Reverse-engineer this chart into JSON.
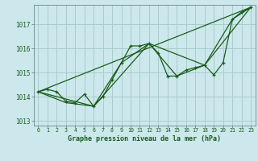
{
  "background_color": "#cce8ec",
  "grid_color": "#aacccc",
  "line_color": "#1a5c1a",
  "xlabel": "Graphe pression niveau de la mer (hPa)",
  "ylim": [
    1012.8,
    1017.8
  ],
  "xlim": [
    -0.5,
    23.5
  ],
  "yticks": [
    1013,
    1014,
    1015,
    1016,
    1017
  ],
  "xticks": [
    0,
    1,
    2,
    3,
    4,
    5,
    6,
    7,
    8,
    9,
    10,
    11,
    12,
    13,
    14,
    15,
    16,
    17,
    18,
    19,
    20,
    21,
    22,
    23
  ],
  "series": [
    {
      "x": [
        0,
        1,
        2,
        3,
        4,
        5,
        6,
        7,
        8,
        9,
        10,
        11,
        12,
        13,
        14,
        15,
        16,
        17,
        18,
        19,
        20,
        21,
        22,
        23
      ],
      "y": [
        1014.2,
        1014.3,
        1014.2,
        1013.8,
        1013.75,
        1014.1,
        1013.6,
        1014.0,
        1014.7,
        1015.4,
        1016.1,
        1016.1,
        1016.2,
        1015.8,
        1014.85,
        1014.85,
        1015.1,
        1015.2,
        1015.3,
        1014.9,
        1015.4,
        1017.2,
        1017.5,
        1017.7
      ],
      "with_marker": true
    },
    {
      "x": [
        0,
        3,
        6,
        9,
        12,
        15,
        18,
        21,
        23
      ],
      "y": [
        1014.2,
        1013.75,
        1013.6,
        1015.4,
        1016.2,
        1014.85,
        1015.3,
        1017.2,
        1017.7
      ],
      "with_marker": false
    },
    {
      "x": [
        0,
        6,
        12,
        18,
        23
      ],
      "y": [
        1014.2,
        1013.6,
        1016.2,
        1015.3,
        1017.7
      ],
      "with_marker": false
    },
    {
      "x": [
        0,
        23
      ],
      "y": [
        1014.2,
        1017.7
      ],
      "with_marker": false
    }
  ]
}
